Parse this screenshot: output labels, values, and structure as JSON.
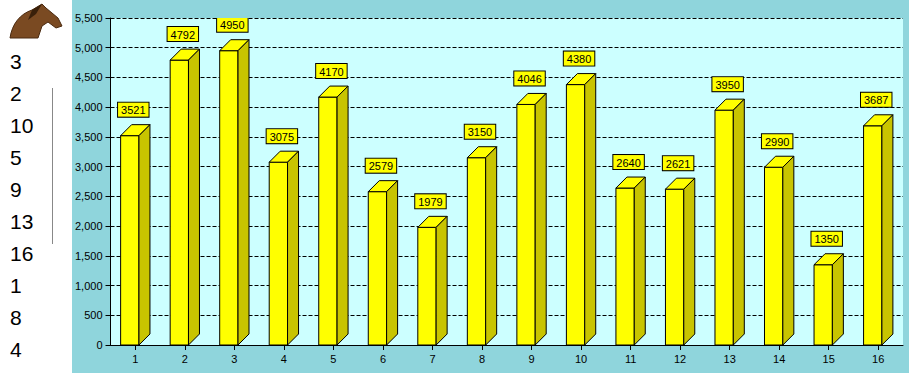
{
  "chart_data": {
    "type": "bar",
    "categories": [
      "1",
      "2",
      "3",
      "4",
      "5",
      "6",
      "7",
      "8",
      "9",
      "10",
      "11",
      "12",
      "13",
      "14",
      "15",
      "16"
    ],
    "values": [
      3521,
      4792,
      4950,
      3075,
      4170,
      2579,
      1979,
      3150,
      4046,
      4380,
      2640,
      2621,
      3950,
      2990,
      1350,
      3687
    ],
    "color": "#ffff00",
    "ylim": [
      0,
      5500
    ],
    "yticks": [
      0,
      500,
      1000,
      1500,
      2000,
      2500,
      3000,
      3500,
      4000,
      4500,
      5000,
      5500
    ],
    "grid": true,
    "data_labels": true
  },
  "side_list": [
    3,
    2,
    10,
    5,
    9,
    13,
    16,
    1,
    8,
    4
  ]
}
